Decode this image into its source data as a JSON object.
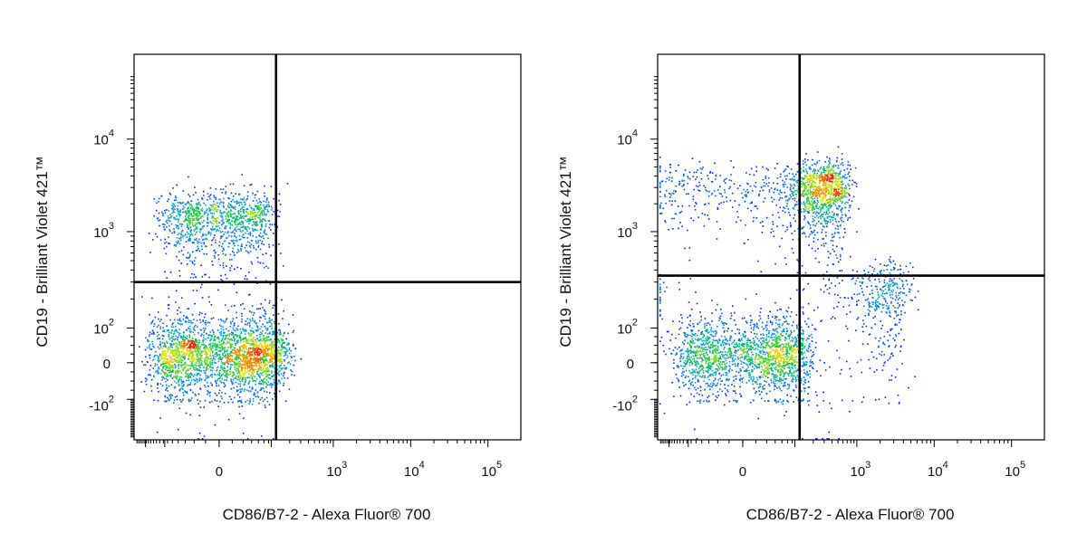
{
  "chart_data": [
    {
      "type": "scatter",
      "plot_style": "pseudocolor density dot plot",
      "xlabel": "CD86/B7-2 - Alexa Fluor® 700",
      "ylabel": "CD19 - Brilliant Violet 421™",
      "x_scale": "biexponential",
      "y_scale": "biexponential",
      "xlim": [
        -300,
        100000
      ],
      "ylim": [
        -800,
        100000
      ],
      "x_ticks": [
        {
          "value": 0,
          "base": "0",
          "exp": ""
        },
        {
          "value": 1000,
          "base": "10",
          "exp": "3"
        },
        {
          "value": 10000,
          "base": "10",
          "exp": "4"
        },
        {
          "value": 100000,
          "base": "10",
          "exp": "5"
        }
      ],
      "y_ticks": [
        {
          "value": -100,
          "base": "-10",
          "exp": "2"
        },
        {
          "value": 0,
          "base": "0",
          "exp": ""
        },
        {
          "value": 100,
          "base": "10",
          "exp": "2"
        },
        {
          "value": 1000,
          "base": "10",
          "exp": "3"
        },
        {
          "value": 10000,
          "base": "10",
          "exp": "4"
        }
      ],
      "quadrant_gate": {
        "x": 120,
        "y": 300
      },
      "populations": [
        {
          "x": 0,
          "y": 1300,
          "x_spread": 55,
          "y_spread": 700,
          "relative_count": 0.32
        },
        {
          "x": 10,
          "y": 20,
          "x_spread": 80,
          "y_spread": 60,
          "relative_count": 0.68
        }
      ],
      "colors": {
        "low": "#0000ff",
        "mid": "#00cc33",
        "high": "#ff2200"
      }
    },
    {
      "type": "scatter",
      "plot_style": "pseudocolor density dot plot",
      "xlabel": "CD86/B7-2 - Alexa Fluor® 700",
      "ylabel": "CD19 - Brilliant Violet 421™",
      "x_scale": "biexponential",
      "y_scale": "biexponential",
      "xlim": [
        -300,
        100000
      ],
      "ylim": [
        -800,
        100000
      ],
      "x_ticks": [
        {
          "value": 0,
          "base": "0",
          "exp": ""
        },
        {
          "value": 1000,
          "base": "10",
          "exp": "3"
        },
        {
          "value": 10000,
          "base": "10",
          "exp": "4"
        },
        {
          "value": 100000,
          "base": "10",
          "exp": "5"
        }
      ],
      "y_ticks": [
        {
          "value": -100,
          "base": "-10",
          "exp": "2"
        },
        {
          "value": 0,
          "base": "0",
          "exp": ""
        },
        {
          "value": 100,
          "base": "10",
          "exp": "2"
        },
        {
          "value": 1000,
          "base": "10",
          "exp": "3"
        },
        {
          "value": 10000,
          "base": "10",
          "exp": "4"
        }
      ],
      "quadrant_gate": {
        "x": 120,
        "y": 350
      },
      "populations": [
        {
          "x": 220,
          "y": 2800,
          "x_spread": 250,
          "y_spread": 1500,
          "relative_count": 0.38
        },
        {
          "x": 10,
          "y": 20,
          "x_spread": 80,
          "y_spread": 60,
          "relative_count": 0.5
        },
        {
          "x": 2000,
          "y": 200,
          "x_spread": 1500,
          "y_spread": 150,
          "relative_count": 0.12
        }
      ],
      "colors": {
        "low": "#0000ff",
        "mid": "#00cc33",
        "high": "#ff2200"
      }
    }
  ]
}
